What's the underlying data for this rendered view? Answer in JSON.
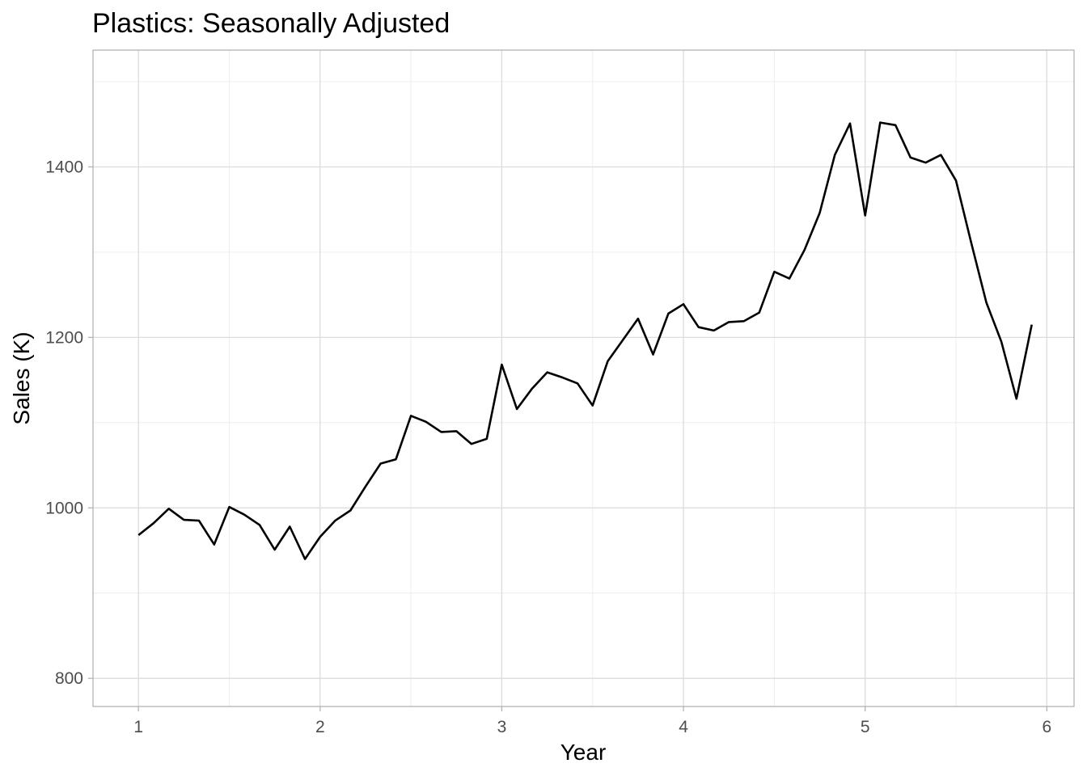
{
  "chart_data": {
    "type": "line",
    "title": "Plastics: Seasonally Adjusted",
    "xlabel": "Year",
    "ylabel": "Sales (K)",
    "xlim": [
      0.75,
      6.15
    ],
    "ylim": [
      767,
      1537
    ],
    "x_ticks": [
      1,
      2,
      3,
      4,
      5,
      6
    ],
    "x_tick_labels": [
      "1",
      "2",
      "3",
      "4",
      "5",
      "6"
    ],
    "y_ticks": [
      800,
      1000,
      1200,
      1400
    ],
    "y_tick_labels": [
      "800",
      "1000",
      "1200",
      "1400"
    ],
    "grid": true,
    "line_color": "#000000",
    "series": [
      {
        "x": [
          1.0,
          1.083,
          1.167,
          1.25,
          1.333,
          1.417,
          1.5,
          1.583,
          1.667,
          1.75,
          1.833,
          1.917,
          2.0,
          2.083,
          2.167,
          2.25,
          2.333,
          2.417,
          2.5,
          2.583,
          2.667,
          2.75,
          2.833,
          2.917,
          3.0,
          3.083,
          3.167,
          3.25,
          3.333,
          3.417,
          3.5,
          3.583,
          3.667,
          3.75,
          3.833,
          3.917,
          4.0,
          4.083,
          4.167,
          4.25,
          4.333,
          4.417,
          4.5,
          4.583,
          4.667,
          4.75,
          4.833,
          4.917,
          5.0,
          5.083,
          5.167,
          5.25,
          5.333,
          5.417,
          5.5,
          5.583,
          5.667,
          5.75,
          5.833,
          5.917
        ],
        "values": [
          968,
          982,
          999,
          986,
          985,
          957,
          1001,
          992,
          980,
          951,
          978,
          940,
          966,
          985,
          997,
          1025,
          1052,
          1057,
          1108,
          1101,
          1089,
          1090,
          1075,
          1081,
          1168,
          1116,
          1140,
          1159,
          1153,
          1146,
          1120,
          1172,
          1197,
          1222,
          1180,
          1228,
          1239,
          1212,
          1208,
          1218,
          1219,
          1229,
          1277,
          1269,
          1303,
          1346,
          1414,
          1451,
          1343,
          1452,
          1449,
          1411,
          1405,
          1414,
          1384,
          1312,
          1241,
          1195,
          1128,
          1215
        ]
      }
    ]
  }
}
